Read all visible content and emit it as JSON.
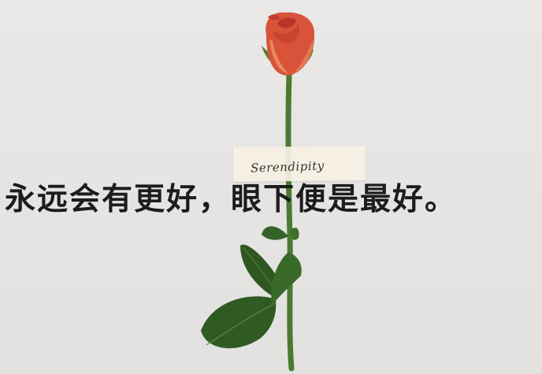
{
  "tape": {
    "text": "Serendipity"
  },
  "caption": {
    "text": "永远会有更好，眼下便是最好。"
  },
  "colors": {
    "background": "#e7e6e4",
    "rose": "#d9523a",
    "stem": "#4a7a32",
    "leaf": "#2f5a22",
    "text": "#1c1c1c"
  }
}
